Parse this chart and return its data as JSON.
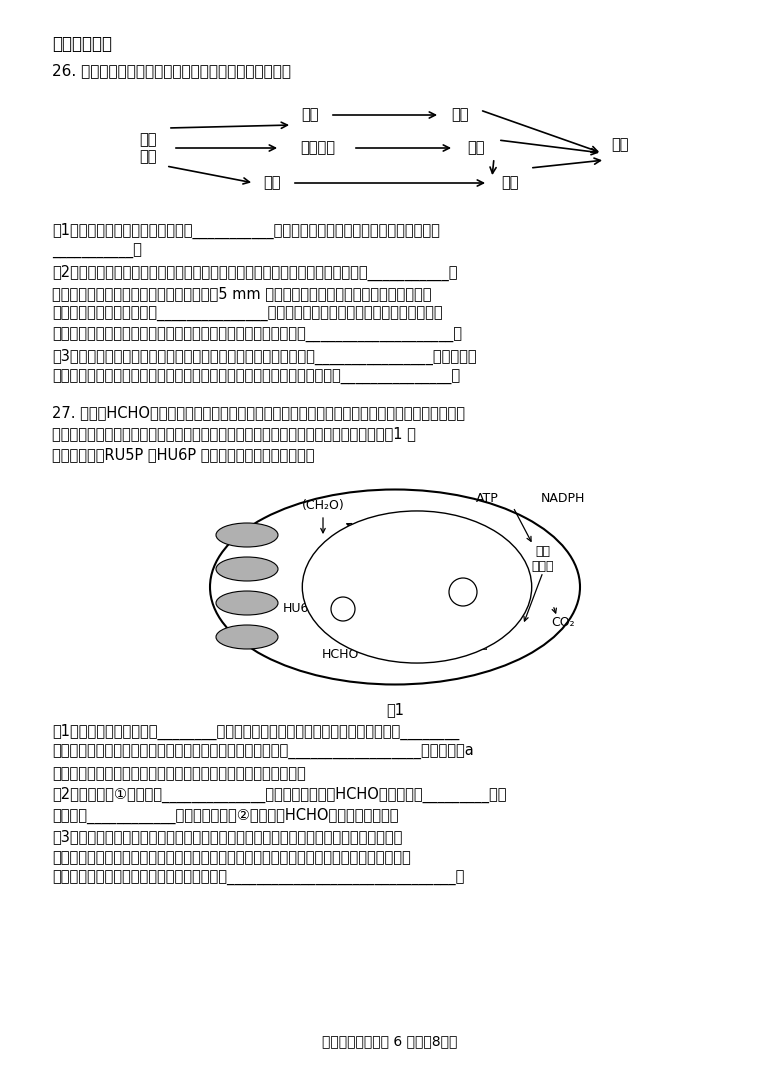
{
  "bg_color": "#ffffff",
  "text_color": "#000000",
  "section_heading": "二、非选择题",
  "q26_intro": "26. 下图是某海洋生态系统部分食物网结构图。请回答：",
  "q26_parts": [
    "（1）海洋生态系统的食物链类型以___________为主。该生态系统的生物成分除图示外还有",
    "___________。",
    "（2）从生态系统能量流动途径分析，虎鲸获得能量的途径中，能量损失最多的是___________。",
    "　　塑料垃圾经分解后形成的微塑料（直径5 mm 以下的塑料颗粒）通过食物链在虎鲸体　内",
    "　　高度富集，该现象就叫_______________。由于环境条件的改变，该地虎鲸数量明显减",
    "　　少，从种群特征的角度分析，虎鲸种群密度减小的直接原因是____________________。",
    "（3）研究海洋中某种单细胞藻类种群数量变化时，可采用的方法是________________。研究人员",
    "　　发现某一时刻第一营养级的生物量比第二营养级少，其主要原因可能是_______________。"
  ],
  "q27_intro": "27. 甲醛（HCHO）是室内空气污染的主要成分之一，室内栽培观赏植物常春藤能够清除甲醛污染。",
  "q27_intro2": "　　研究发现外源甲醛可以作为碳源被整合进入常春藤的光合作用过程中，具体过程如图1 所",
  "q27_intro3": "　　示（其中RU5P 和HU6P 是中间产物）回答有关问题：",
  "fig1_label": "图1",
  "q27_parts": [
    "（1）基粒上的色素能吸收________范围内的光能。在分离色素时，由于不同色素在________",
    "　　以及滤纸上的吸附能力不同，从而出现色素带分层。若用__________________照射叶绿素a",
    "　　提取液，通过测量、计算、画图，即得到该色素的吸收光谱。",
    "（2）图中循环①的名称是______________。细胞同化甲醛（HCHO）的场所是_________，可",
    "　　采用____________的方法探明循环②中甲醛（HCHO）的碳同化路径。",
    "（3）甲醛在被常春藤吸收利用的同时，也会对常春藤的生长产生一定的影响，研究人员发",
    "　　现在低浓度甲醛胁迫下，叶片气孔导度（气孔的开放程度）降低，而叶肉细胞中可溶性糖",
    "　　含量反而增加，据图分析，可能的原因是_______________________________。"
  ],
  "page_footer": "高二生物试题　第 6 页（共8页）"
}
